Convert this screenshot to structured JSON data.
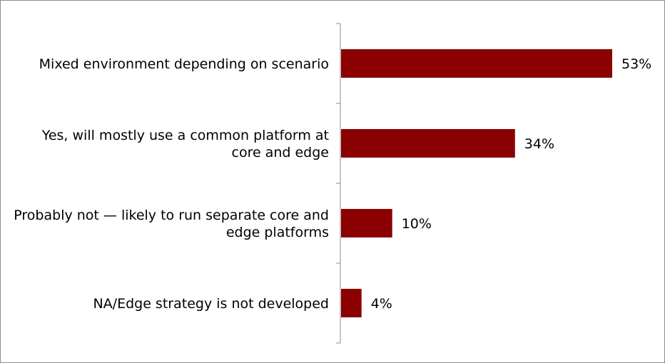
{
  "chart_data": {
    "type": "bar",
    "orientation": "horizontal",
    "categories": [
      "Mixed environment depending on scenario",
      "Yes, will mostly use a common platform at core and edge",
      "Probably not — likely to run separate core and edge platforms",
      "NA/Edge strategy is not developed"
    ],
    "category_lines": [
      [
        "Mixed environment depending on scenario"
      ],
      [
        "Yes, will mostly use a common platform at",
        "core and edge"
      ],
      [
        "Probably not — likely to run separate core and",
        "edge platforms"
      ],
      [
        "NA/Edge strategy is not developed"
      ]
    ],
    "values": [
      53,
      34,
      10,
      4
    ],
    "value_labels": [
      "53%",
      "34%",
      "10%",
      "4%"
    ],
    "xlim": [
      0,
      60
    ],
    "bar_color": "#8b0000",
    "grid": false,
    "legend": "none"
  }
}
